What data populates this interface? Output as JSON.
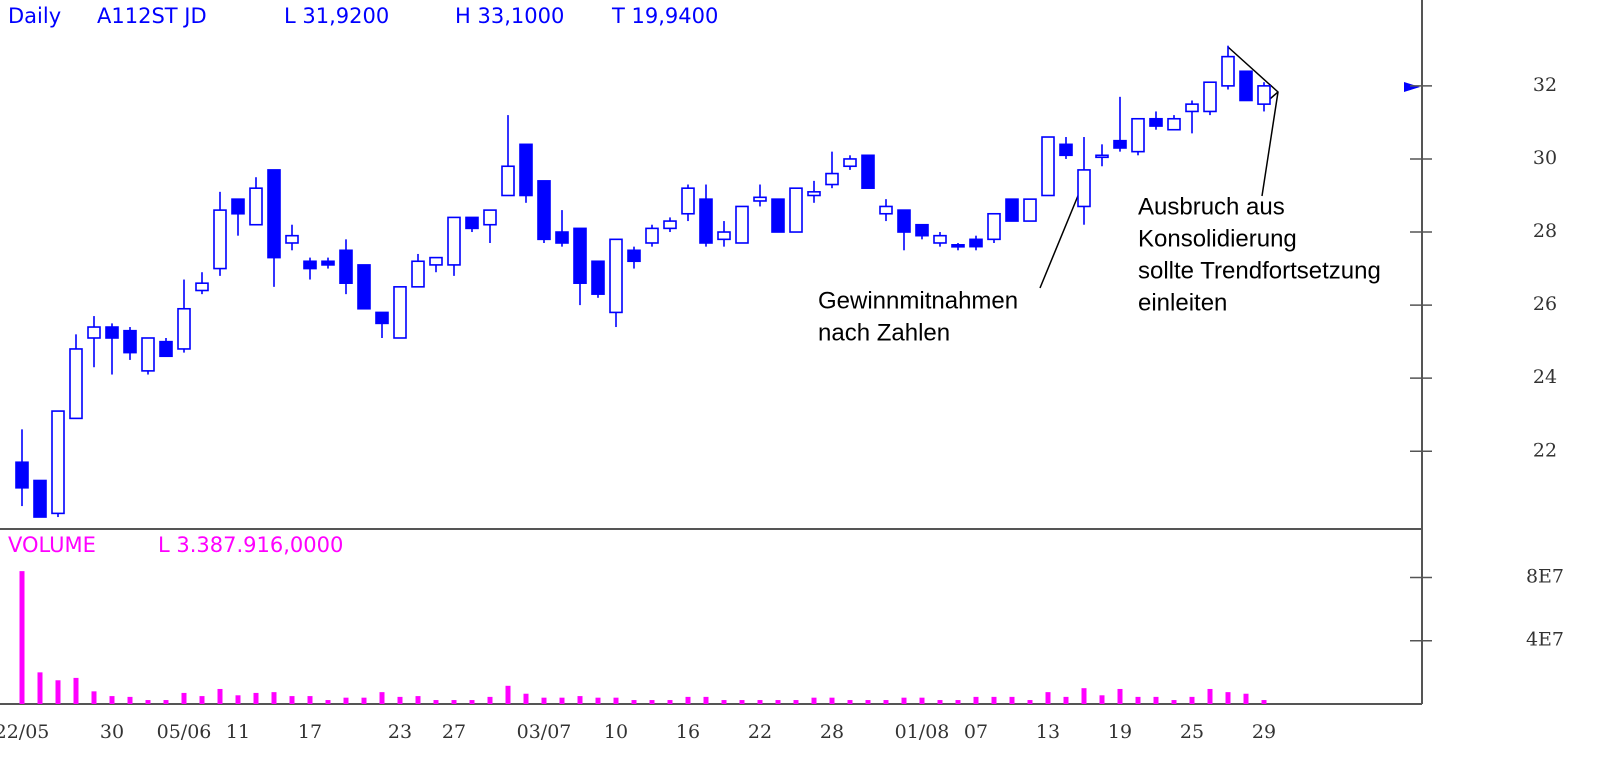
{
  "chart_data": [
    {
      "type": "candlestick",
      "header": [
        "Daily",
        "A112ST  JD",
        "L  31,9200",
        "H  33,1000",
        "T  19,9400"
      ],
      "color": "#0000ff",
      "categories": [
        "22/05",
        null,
        null,
        null,
        null,
        "30",
        null,
        null,
        null,
        "05/06",
        null,
        null,
        "11",
        null,
        null,
        null,
        "17",
        null,
        null,
        null,
        null,
        "23",
        null,
        null,
        "27",
        null,
        null,
        null,
        null,
        "03/07",
        null,
        null,
        null,
        "10",
        null,
        null,
        null,
        "16",
        null,
        null,
        null,
        "22",
        null,
        null,
        null,
        "28",
        null,
        null,
        null,
        null,
        "01/08",
        null,
        null,
        "07",
        null,
        null,
        null,
        "13",
        null,
        null,
        null,
        "19",
        null,
        null,
        null,
        "25",
        null,
        null,
        null,
        "29"
      ],
      "open": [
        21.7,
        21.2,
        20.3,
        22.9,
        25.1,
        25.4,
        25.3,
        24.2,
        25.0,
        24.8,
        26.4,
        27.0,
        28.9,
        28.2,
        29.7,
        27.7,
        27.2,
        27.2,
        27.5,
        27.1,
        25.8,
        25.1,
        26.5,
        27.1,
        27.1,
        28.4,
        28.2,
        29.0,
        30.4,
        29.4,
        28.0,
        28.1,
        27.2,
        25.8,
        27.5,
        27.7,
        28.1,
        28.5,
        28.9,
        27.8,
        27.7,
        28.85,
        28.9,
        28.0,
        29.0,
        29.3,
        29.8,
        30.1,
        28.5,
        28.6,
        28.2,
        27.7,
        27.65,
        27.8,
        27.8,
        28.9,
        28.3,
        29.0,
        30.4,
        28.7,
        30.05,
        30.5,
        30.2,
        31.1,
        30.8,
        31.3,
        31.3,
        32.0,
        32.4,
        31.5
      ],
      "high": [
        22.6,
        21.2,
        23.1,
        25.2,
        25.7,
        25.5,
        25.4,
        25.1,
        25.1,
        26.7,
        26.9,
        29.1,
        28.9,
        29.5,
        29.7,
        28.2,
        27.3,
        27.3,
        27.8,
        27.1,
        25.8,
        26.5,
        27.4,
        27.3,
        28.4,
        28.4,
        28.6,
        31.2,
        30.4,
        29.4,
        28.6,
        28.1,
        27.2,
        27.8,
        27.6,
        28.2,
        28.4,
        29.3,
        29.3,
        28.3,
        28.7,
        29.3,
        28.9,
        29.2,
        29.4,
        30.2,
        30.1,
        30.1,
        28.9,
        28.6,
        28.2,
        28.0,
        27.7,
        27.9,
        28.5,
        28.9,
        28.9,
        30.6,
        30.6,
        30.6,
        30.4,
        31.7,
        31.1,
        31.3,
        31.2,
        31.6,
        32.1,
        33.1,
        32.4,
        32.1
      ],
      "low": [
        20.5,
        20.2,
        20.2,
        22.9,
        24.3,
        24.1,
        24.5,
        24.1,
        24.6,
        24.7,
        26.3,
        26.8,
        27.9,
        28.2,
        26.5,
        27.5,
        26.7,
        27.0,
        26.3,
        25.9,
        25.1,
        25.1,
        26.5,
        26.9,
        26.8,
        28.0,
        27.7,
        29.0,
        28.8,
        27.7,
        27.6,
        26.0,
        26.2,
        25.4,
        27.0,
        27.6,
        28.0,
        28.3,
        27.6,
        27.6,
        27.7,
        28.7,
        28.0,
        28.0,
        28.8,
        29.2,
        29.7,
        29.2,
        28.3,
        27.5,
        27.8,
        27.6,
        27.5,
        27.5,
        27.7,
        28.3,
        28.3,
        29.0,
        30.0,
        28.2,
        29.8,
        30.2,
        30.1,
        30.8,
        30.8,
        30.7,
        31.2,
        31.9,
        31.6,
        31.3
      ],
      "close": [
        21.0,
        20.2,
        23.1,
        24.8,
        25.4,
        25.1,
        24.7,
        25.1,
        24.6,
        25.9,
        26.6,
        28.6,
        28.5,
        29.2,
        27.3,
        27.9,
        27.0,
        27.1,
        26.6,
        25.9,
        25.5,
        26.5,
        27.2,
        27.3,
        28.4,
        28.1,
        28.6,
        29.8,
        29.0,
        27.8,
        27.7,
        26.6,
        26.3,
        27.8,
        27.2,
        28.1,
        28.3,
        29.2,
        27.7,
        28.0,
        28.7,
        28.95,
        28.0,
        29.2,
        29.1,
        29.6,
        30.0,
        29.2,
        28.7,
        28.0,
        27.9,
        27.9,
        27.6,
        27.6,
        28.5,
        28.3,
        28.9,
        30.6,
        30.1,
        29.7,
        30.1,
        30.3,
        31.1,
        30.9,
        31.1,
        31.5,
        32.1,
        32.8,
        31.6,
        32.0
      ],
      "ylim": [
        19.9,
        34.35
      ],
      "yticks": [
        22,
        24,
        26,
        28,
        30,
        32
      ],
      "annotations": [
        {
          "lines": [
            "Gewinnmitnahmen",
            "nach Zahlen"
          ]
        },
        {
          "lines": [
            "Ausbruch aus",
            "Konsolidierung",
            "sollte Trendfortsetzung",
            "einleiten"
          ]
        }
      ]
    },
    {
      "type": "bar",
      "header": [
        "VOLUME",
        "L  3.387.916,0000"
      ],
      "color": "#ff00ff",
      "values": [
        84000000,
        20000000,
        15000000,
        16500000,
        8000000,
        5000000,
        4500000,
        2500000,
        2500000,
        7000000,
        5000000,
        9500000,
        5500000,
        7000000,
        7500000,
        5000000,
        5000000,
        2500000,
        4000000,
        4000000,
        7500000,
        4500000,
        5000000,
        2500000,
        2500000,
        2500000,
        4500000,
        11500000,
        6500000,
        4000000,
        4000000,
        5000000,
        4000000,
        4000000,
        2500000,
        2500000,
        2500000,
        4500000,
        4500000,
        2500000,
        2500000,
        2500000,
        2500000,
        2500000,
        4000000,
        4000000,
        2500000,
        2500000,
        2500000,
        4000000,
        4000000,
        2500000,
        2500000,
        4500000,
        4500000,
        4500000,
        2500000,
        7500000,
        4500000,
        10000000,
        5500000,
        9500000,
        4500000,
        4500000,
        2500000,
        4500000,
        9500000,
        7500000,
        6500000,
        2500000
      ],
      "ylim": [
        0,
        110000000
      ],
      "yticks": [
        {
          "value": 80000000,
          "label": "8E7"
        },
        {
          "value": 40000000,
          "label": "4E7"
        }
      ]
    }
  ]
}
